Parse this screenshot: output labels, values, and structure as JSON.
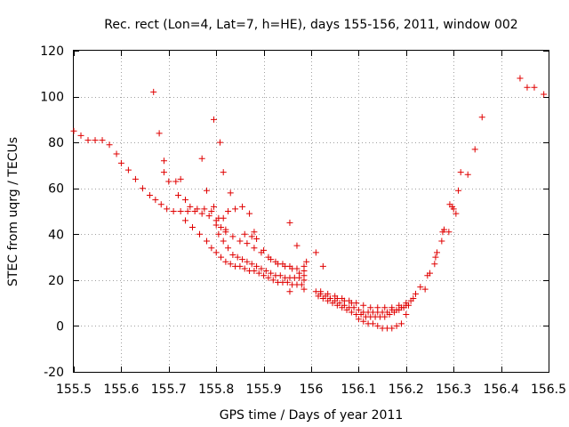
{
  "chart_data": {
    "type": "scatter",
    "title": "Rec. rect (Lon=4, Lat=7, h=HE), days 155-156, 2011, window 002",
    "xlabel": "GPS time / Days of year 2011",
    "ylabel": "STEC from uqrg / TECUs",
    "xlim": [
      155.5,
      156.5
    ],
    "ylim": [
      -20,
      120
    ],
    "xticks": [
      155.5,
      155.6,
      155.7,
      155.8,
      155.9,
      156.0,
      156.1,
      156.2,
      156.3,
      156.4,
      156.5
    ],
    "xtick_labels": [
      "155.5",
      "155.6",
      "155.7",
      "155.8",
      "155.9",
      "156",
      "156.1",
      "156.2",
      "156.3",
      "156.4",
      "156.5"
    ],
    "yticks": [
      -20,
      0,
      20,
      40,
      60,
      80,
      100,
      120
    ],
    "ytick_labels": [
      "-20",
      "0",
      "20",
      "40",
      "60",
      "80",
      "100",
      "120"
    ],
    "grid": true,
    "marker": "+",
    "color": "#e00000",
    "points": [
      [
        155.5,
        85
      ],
      [
        155.515,
        83
      ],
      [
        155.53,
        81
      ],
      [
        155.545,
        81
      ],
      [
        155.56,
        81
      ],
      [
        155.575,
        79
      ],
      [
        155.59,
        75
      ],
      [
        155.6,
        71
      ],
      [
        155.615,
        68
      ],
      [
        155.63,
        64
      ],
      [
        155.645,
        60
      ],
      [
        155.66,
        57
      ],
      [
        155.672,
        55
      ],
      [
        155.684,
        53
      ],
      [
        155.696,
        51
      ],
      [
        155.71,
        50
      ],
      [
        155.725,
        50
      ],
      [
        155.74,
        50
      ],
      [
        155.755,
        50
      ],
      [
        155.77,
        49
      ],
      [
        155.785,
        48
      ],
      [
        155.8,
        46
      ],
      [
        155.69,
        67
      ],
      [
        155.7,
        63
      ],
      [
        155.715,
        63
      ],
      [
        155.72,
        57
      ],
      [
        155.735,
        55
      ],
      [
        155.745,
        52
      ],
      [
        155.76,
        51
      ],
      [
        155.775,
        51
      ],
      [
        155.79,
        50
      ],
      [
        155.795,
        52
      ],
      [
        155.805,
        47
      ],
      [
        155.815,
        47
      ],
      [
        155.825,
        50
      ],
      [
        155.84,
        51
      ],
      [
        155.855,
        52
      ],
      [
        155.87,
        49
      ],
      [
        155.735,
        46
      ],
      [
        155.75,
        43
      ],
      [
        155.765,
        40
      ],
      [
        155.78,
        37
      ],
      [
        155.79,
        34
      ],
      [
        155.8,
        32
      ],
      [
        155.81,
        30
      ],
      [
        155.82,
        28
      ],
      [
        155.83,
        27
      ],
      [
        155.84,
        26
      ],
      [
        155.85,
        26
      ],
      [
        155.86,
        25
      ],
      [
        155.87,
        24
      ],
      [
        155.88,
        24
      ],
      [
        155.89,
        23
      ],
      [
        155.9,
        22
      ],
      [
        155.91,
        21
      ],
      [
        155.92,
        20
      ],
      [
        155.93,
        19
      ],
      [
        155.94,
        19
      ],
      [
        155.95,
        19
      ],
      [
        155.96,
        18
      ],
      [
        155.97,
        18
      ],
      [
        155.98,
        18
      ],
      [
        155.805,
        40
      ],
      [
        155.815,
        37
      ],
      [
        155.825,
        34
      ],
      [
        155.835,
        31
      ],
      [
        155.845,
        30
      ],
      [
        155.855,
        29
      ],
      [
        155.865,
        28
      ],
      [
        155.875,
        27
      ],
      [
        155.885,
        26
      ],
      [
        155.895,
        25
      ],
      [
        155.905,
        24
      ],
      [
        155.915,
        23
      ],
      [
        155.925,
        22
      ],
      [
        155.935,
        22
      ],
      [
        155.945,
        21
      ],
      [
        155.955,
        21
      ],
      [
        155.965,
        21
      ],
      [
        155.975,
        21
      ],
      [
        155.985,
        20
      ],
      [
        155.82,
        41
      ],
      [
        155.835,
        39
      ],
      [
        155.85,
        37
      ],
      [
        155.865,
        36
      ],
      [
        155.88,
        34
      ],
      [
        155.895,
        32
      ],
      [
        155.91,
        30
      ],
      [
        155.925,
        28
      ],
      [
        155.94,
        27
      ],
      [
        155.955,
        26
      ],
      [
        155.97,
        25
      ],
      [
        155.985,
        24
      ],
      [
        155.8,
        44
      ],
      [
        155.81,
        43
      ],
      [
        155.82,
        42
      ],
      [
        155.86,
        40
      ],
      [
        155.875,
        39
      ],
      [
        155.885,
        38
      ],
      [
        155.9,
        33
      ],
      [
        155.915,
        29
      ],
      [
        155.93,
        27
      ],
      [
        155.945,
        26
      ],
      [
        155.96,
        25
      ],
      [
        155.975,
        23
      ],
      [
        155.985,
        22
      ],
      [
        155.985,
        26
      ],
      [
        155.985,
        16
      ],
      [
        155.668,
        102
      ],
      [
        155.68,
        84
      ],
      [
        155.69,
        72
      ],
      [
        155.725,
        64
      ],
      [
        155.77,
        73
      ],
      [
        155.78,
        59
      ],
      [
        155.795,
        90
      ],
      [
        155.808,
        80
      ],
      [
        155.815,
        67
      ],
      [
        155.83,
        58
      ],
      [
        155.88,
        41
      ],
      [
        155.955,
        45
      ],
      [
        155.97,
        35
      ],
      [
        155.955,
        15
      ],
      [
        155.99,
        28
      ],
      [
        156.01,
        15
      ],
      [
        156.015,
        13
      ],
      [
        156.025,
        12
      ],
      [
        156.035,
        11
      ],
      [
        156.045,
        10
      ],
      [
        156.055,
        9
      ],
      [
        156.065,
        8
      ],
      [
        156.075,
        7
      ],
      [
        156.085,
        6
      ],
      [
        156.095,
        5
      ],
      [
        156.105,
        5
      ],
      [
        156.115,
        4
      ],
      [
        156.125,
        4
      ],
      [
        156.135,
        4
      ],
      [
        156.145,
        4
      ],
      [
        156.155,
        4
      ],
      [
        156.165,
        5
      ],
      [
        156.175,
        6
      ],
      [
        156.185,
        7
      ],
      [
        156.195,
        8
      ],
      [
        156.205,
        9
      ],
      [
        156.215,
        12
      ],
      [
        156.02,
        14
      ],
      [
        156.03,
        13
      ],
      [
        156.04,
        12
      ],
      [
        156.05,
        11
      ],
      [
        156.06,
        10
      ],
      [
        156.07,
        9
      ],
      [
        156.08,
        8
      ],
      [
        156.09,
        8
      ],
      [
        156.1,
        7
      ],
      [
        156.11,
        6
      ],
      [
        156.12,
        6
      ],
      [
        156.13,
        6
      ],
      [
        156.14,
        6
      ],
      [
        156.15,
        6
      ],
      [
        156.16,
        6
      ],
      [
        156.17,
        7
      ],
      [
        156.18,
        7
      ],
      [
        156.19,
        8
      ],
      [
        156.2,
        9
      ],
      [
        156.21,
        11
      ],
      [
        156.035,
        14
      ],
      [
        156.05,
        13
      ],
      [
        156.065,
        12
      ],
      [
        156.08,
        11
      ],
      [
        156.095,
        10
      ],
      [
        156.11,
        9
      ],
      [
        156.125,
        8
      ],
      [
        156.14,
        8
      ],
      [
        156.155,
        8
      ],
      [
        156.17,
        8
      ],
      [
        156.185,
        9
      ],
      [
        156.2,
        10
      ],
      [
        156.04,
        12
      ],
      [
        156.055,
        12
      ],
      [
        156.07,
        11
      ],
      [
        156.085,
        10
      ],
      [
        156.1,
        3
      ],
      [
        156.11,
        2
      ],
      [
        156.12,
        1
      ],
      [
        156.13,
        1
      ],
      [
        156.14,
        0
      ],
      [
        156.15,
        -1
      ],
      [
        156.16,
        -1
      ],
      [
        156.17,
        -1
      ],
      [
        156.18,
        0
      ],
      [
        156.19,
        1
      ],
      [
        156.2,
        5
      ],
      [
        156.01,
        32
      ],
      [
        156.025,
        26
      ],
      [
        156.02,
        15
      ],
      [
        156.22,
        14
      ],
      [
        156.23,
        17
      ],
      [
        156.24,
        16
      ],
      [
        156.245,
        22
      ],
      [
        156.25,
        23
      ],
      [
        156.26,
        27
      ],
      [
        156.262,
        30
      ],
      [
        156.265,
        32
      ],
      [
        156.275,
        37
      ],
      [
        156.277,
        41
      ],
      [
        156.28,
        42
      ],
      [
        156.29,
        41
      ],
      [
        156.292,
        53
      ],
      [
        156.297,
        52
      ],
      [
        156.3,
        51
      ],
      [
        156.305,
        49
      ],
      [
        156.31,
        59
      ],
      [
        156.315,
        67
      ],
      [
        156.33,
        66
      ],
      [
        156.345,
        77
      ],
      [
        156.36,
        91
      ],
      [
        156.44,
        108
      ],
      [
        156.455,
        104
      ],
      [
        156.47,
        104
      ],
      [
        156.49,
        101
      ]
    ]
  }
}
